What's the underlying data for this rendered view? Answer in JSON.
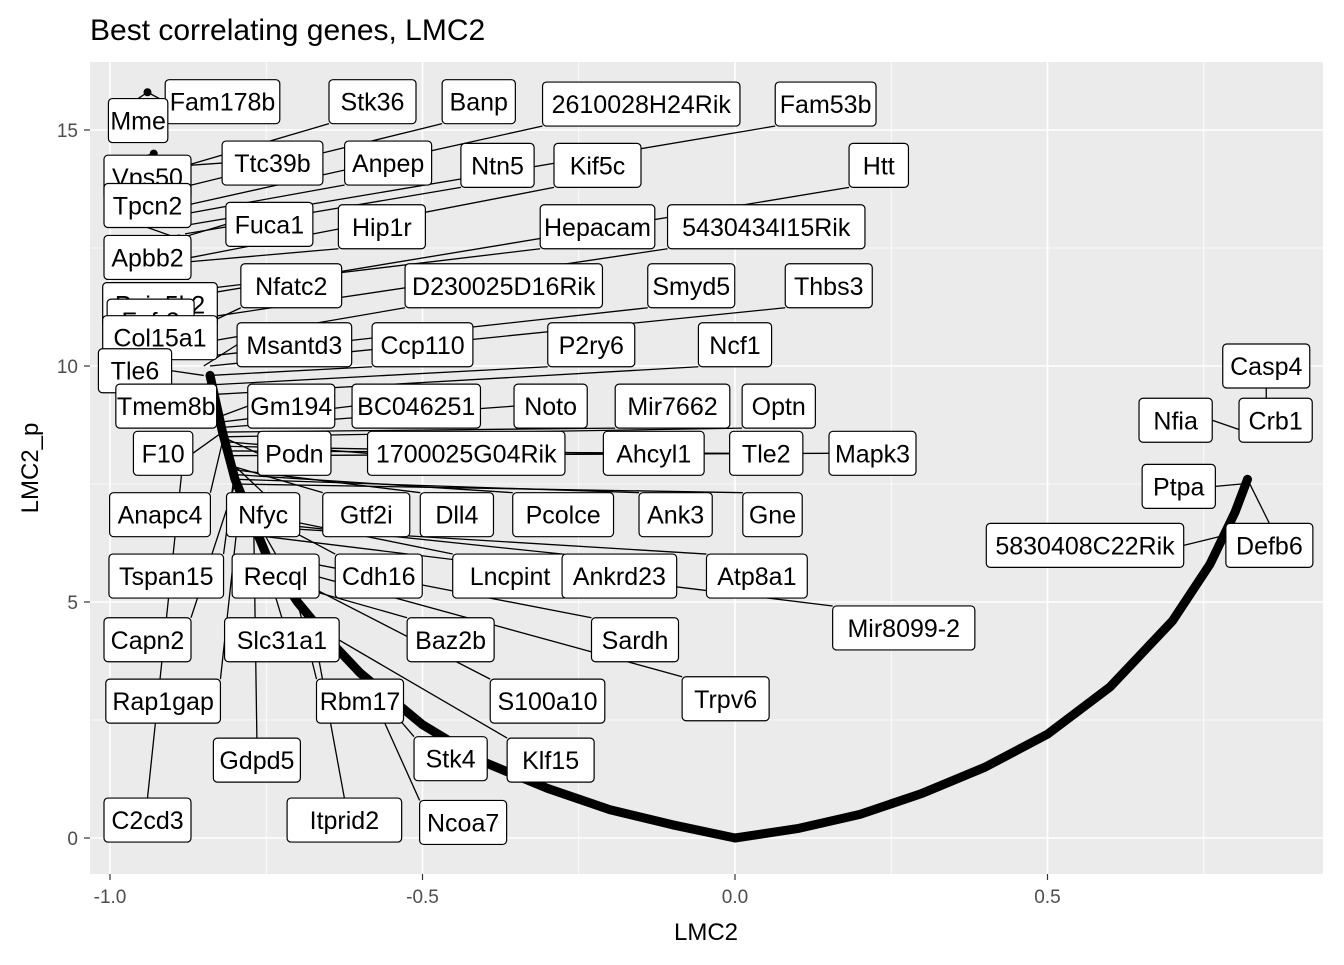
{
  "chart_data": {
    "type": "scatter",
    "title": "Best correlating genes, LMC2",
    "xlabel": "LMC2",
    "ylabel": "LMC2_p",
    "xlim": [
      -1.035,
      0.93
    ],
    "ylim": [
      -0.75,
      16.2
    ],
    "x_ticks": [
      -1.0,
      -0.5,
      0.0,
      0.5
    ],
    "x_tick_labels": [
      "-1.0",
      "-0.5",
      "0.0",
      "0.5"
    ],
    "y_ticks": [
      0,
      5,
      10,
      15
    ],
    "y_tick_labels": [
      "0",
      "5",
      "10",
      "15"
    ],
    "grid": true,
    "legend": "none",
    "curve": {
      "description_points": "dense gene points forming a V-shaped curve",
      "left_branch": [
        [
          -0.84,
          9.8
        ],
        [
          -0.82,
          8.6
        ],
        [
          -0.8,
          7.6
        ],
        [
          -0.75,
          6.0
        ],
        [
          -0.7,
          5.0
        ],
        [
          -0.65,
          4.2
        ],
        [
          -0.6,
          3.5
        ],
        [
          -0.5,
          2.4
        ],
        [
          -0.4,
          1.6
        ],
        [
          -0.3,
          1.05
        ],
        [
          -0.2,
          0.6
        ],
        [
          -0.1,
          0.28
        ],
        [
          0.0,
          0.0
        ]
      ],
      "right_branch": [
        [
          0.0,
          0.0
        ],
        [
          0.1,
          0.2
        ],
        [
          0.2,
          0.5
        ],
        [
          0.3,
          0.95
        ],
        [
          0.4,
          1.5
        ],
        [
          0.5,
          2.2
        ],
        [
          0.6,
          3.2
        ],
        [
          0.7,
          4.6
        ],
        [
          0.76,
          5.8
        ],
        [
          0.8,
          6.9
        ],
        [
          0.82,
          7.6
        ]
      ]
    },
    "highlight_points": [
      [
        -0.94,
        15.8
      ],
      [
        -0.93,
        14.5
      ],
      [
        -0.89,
        12.7
      ],
      [
        0.85,
        9.1
      ]
    ],
    "labels": [
      {
        "text": "Fam178b",
        "lx": -0.82,
        "ly": 15.6,
        "px": -0.94,
        "py": 15.8
      },
      {
        "text": "Stk36",
        "lx": -0.58,
        "ly": 15.6,
        "px": -0.89,
        "py": 14.2
      },
      {
        "text": "Banp",
        "lx": -0.41,
        "ly": 15.6,
        "px": -0.88,
        "py": 13.8
      },
      {
        "text": "2610028H24Rik",
        "lx": -0.15,
        "ly": 15.55,
        "px": -0.88,
        "py": 13.4
      },
      {
        "text": "Fam53b",
        "lx": 0.145,
        "ly": 15.55,
        "px": -0.87,
        "py": 13.0
      },
      {
        "text": "Mme",
        "lx": -0.955,
        "ly": 15.2,
        "px": -0.94,
        "py": 15.8
      },
      {
        "text": "Ttc39b",
        "lx": -0.74,
        "ly": 14.3,
        "px": -0.93,
        "py": 14.2
      },
      {
        "text": "Anpep",
        "lx": -0.555,
        "ly": 14.3,
        "px": -0.89,
        "py": 13.2
      },
      {
        "text": "Ntn5",
        "lx": -0.38,
        "ly": 14.25,
        "px": -0.88,
        "py": 12.8
      },
      {
        "text": "Kif5c",
        "lx": -0.22,
        "ly": 14.25,
        "px": -0.87,
        "py": 12.3
      },
      {
        "text": "Htt",
        "lx": 0.23,
        "ly": 14.25,
        "px": -0.86,
        "py": 11.5
      },
      {
        "text": "Vps50",
        "lx": -0.94,
        "ly": 14.0,
        "px": -0.93,
        "py": 14.5
      },
      {
        "text": "Tpcn2",
        "lx": -0.94,
        "ly": 13.4,
        "px": -0.89,
        "py": 12.7
      },
      {
        "text": "Fuca1",
        "lx": -0.745,
        "ly": 13.0,
        "px": -0.89,
        "py": 12.7
      },
      {
        "text": "Hip1r",
        "lx": -0.565,
        "ly": 12.95,
        "px": -0.88,
        "py": 12.2
      },
      {
        "text": "Hepacam",
        "lx": -0.22,
        "ly": 12.95,
        "px": -0.87,
        "py": 11.6
      },
      {
        "text": "5430434I15Rik",
        "lx": 0.05,
        "ly": 12.95,
        "px": -0.86,
        "py": 11.0
      },
      {
        "text": "Apbb2",
        "lx": -0.94,
        "ly": 12.3,
        "px": -0.89,
        "py": 12.4
      },
      {
        "text": "Nfatc2",
        "lx": -0.71,
        "ly": 11.7,
        "px": -0.86,
        "py": 10.8
      },
      {
        "text": "D230025D16Rik",
        "lx": -0.37,
        "ly": 11.7,
        "px": -0.85,
        "py": 10.5
      },
      {
        "text": "Smyd5",
        "lx": -0.07,
        "ly": 11.7,
        "px": -0.85,
        "py": 10.2
      },
      {
        "text": "Thbs3",
        "lx": 0.15,
        "ly": 11.7,
        "px": -0.84,
        "py": 10.0
      },
      {
        "text": "Ppip5k2",
        "lx": -0.92,
        "ly": 11.3,
        "px": -0.87,
        "py": 11.1
      },
      {
        "text": "Fgfr3",
        "lx": -0.935,
        "ly": 10.95,
        "px": -0.87,
        "py": 10.7
      },
      {
        "text": "Col15a1",
        "lx": -0.92,
        "ly": 10.6,
        "px": -0.86,
        "py": 10.2
      },
      {
        "text": "Msantd3",
        "lx": -0.705,
        "ly": 10.45,
        "px": -0.85,
        "py": 10.0
      },
      {
        "text": "Ccp110",
        "lx": -0.5,
        "ly": 10.45,
        "px": -0.84,
        "py": 9.8
      },
      {
        "text": "P2ry6",
        "lx": -0.23,
        "ly": 10.45,
        "px": -0.84,
        "py": 9.6
      },
      {
        "text": "Ncf1",
        "lx": 0.0,
        "ly": 10.45,
        "px": -0.83,
        "py": 9.4
      },
      {
        "text": "Tle6",
        "lx": -0.96,
        "ly": 9.9,
        "px": -0.85,
        "py": 9.8
      },
      {
        "text": "Tmem8b",
        "lx": -0.91,
        "ly": 9.15,
        "px": -0.83,
        "py": 9.0
      },
      {
        "text": "Gm194",
        "lx": -0.71,
        "ly": 9.15,
        "px": -0.83,
        "py": 8.9
      },
      {
        "text": "BC046251",
        "lx": -0.51,
        "ly": 9.15,
        "px": -0.83,
        "py": 8.8
      },
      {
        "text": "Noto",
        "lx": -0.295,
        "ly": 9.15,
        "px": -0.82,
        "py": 8.7
      },
      {
        "text": "Mir7662",
        "lx": -0.1,
        "ly": 9.15,
        "px": -0.82,
        "py": 8.6
      },
      {
        "text": "Optn",
        "lx": 0.07,
        "ly": 9.15,
        "px": -0.82,
        "py": 8.5
      },
      {
        "text": "Casp4",
        "lx": 0.85,
        "ly": 10.0,
        "px": 0.85,
        "py": 9.1
      },
      {
        "text": "Nfia",
        "lx": 0.705,
        "ly": 8.85,
        "px": 0.84,
        "py": 8.5
      },
      {
        "text": "Crb1",
        "lx": 0.865,
        "ly": 8.85,
        "px": 0.85,
        "py": 9.1
      },
      {
        "text": "F10",
        "lx": -0.915,
        "ly": 8.15,
        "px": -0.82,
        "py": 8.6
      },
      {
        "text": "Podn",
        "lx": -0.705,
        "ly": 8.15,
        "px": -0.82,
        "py": 8.5
      },
      {
        "text": "1700025G04Rik",
        "lx": -0.43,
        "ly": 8.15,
        "px": -0.82,
        "py": 8.4
      },
      {
        "text": "Ahcyl1",
        "lx": -0.13,
        "ly": 8.15,
        "px": -0.82,
        "py": 8.3
      },
      {
        "text": "Tle2",
        "lx": 0.05,
        "ly": 8.15,
        "px": -0.81,
        "py": 8.2
      },
      {
        "text": "Mapk3",
        "lx": 0.22,
        "ly": 8.15,
        "px": -0.81,
        "py": 8.1
      },
      {
        "text": "Ptpa",
        "lx": 0.71,
        "ly": 7.45,
        "px": 0.81,
        "py": 7.5
      },
      {
        "text": "Anapc4",
        "lx": -0.92,
        "ly": 6.85,
        "px": -0.82,
        "py": 8.4
      },
      {
        "text": "Nfyc",
        "lx": -0.755,
        "ly": 6.85,
        "px": -0.81,
        "py": 8.0
      },
      {
        "text": "Gtf2i",
        "lx": -0.59,
        "ly": 6.85,
        "px": -0.81,
        "py": 7.9
      },
      {
        "text": "Dll4",
        "lx": -0.445,
        "ly": 6.85,
        "px": -0.8,
        "py": 7.8
      },
      {
        "text": "Pcolce",
        "lx": -0.275,
        "ly": 6.85,
        "px": -0.8,
        "py": 7.7
      },
      {
        "text": "Ank3",
        "lx": -0.095,
        "ly": 6.85,
        "px": -0.8,
        "py": 7.6
      },
      {
        "text": "Gne",
        "lx": 0.06,
        "ly": 6.85,
        "px": -0.8,
        "py": 7.5
      },
      {
        "text": "5830408C22Rik",
        "lx": 0.56,
        "ly": 6.2,
        "px": 0.78,
        "py": 6.4
      },
      {
        "text": "Defb6",
        "lx": 0.855,
        "ly": 6.2,
        "px": 0.82,
        "py": 7.6
      },
      {
        "text": "Tspan15",
        "lx": -0.91,
        "ly": 5.55,
        "px": -0.8,
        "py": 7.8
      },
      {
        "text": "Recql",
        "lx": -0.735,
        "ly": 5.55,
        "px": -0.79,
        "py": 7.3
      },
      {
        "text": "Cdh16",
        "lx": -0.57,
        "ly": 5.55,
        "px": -0.78,
        "py": 7.0
      },
      {
        "text": "Lncpint",
        "lx": -0.36,
        "ly": 5.55,
        "px": -0.78,
        "py": 6.9
      },
      {
        "text": "Ankrd23",
        "lx": -0.185,
        "ly": 5.55,
        "px": -0.77,
        "py": 6.7
      },
      {
        "text": "Atp8a1",
        "lx": 0.035,
        "ly": 5.55,
        "px": -0.77,
        "py": 6.6
      },
      {
        "text": "Mir8099-2",
        "lx": 0.27,
        "ly": 4.45,
        "px": -0.76,
        "py": 6.4
      },
      {
        "text": "Capn2",
        "lx": -0.94,
        "ly": 4.2,
        "px": -0.8,
        "py": 7.5
      },
      {
        "text": "Slc31a1",
        "lx": -0.725,
        "ly": 4.2,
        "px": -0.76,
        "py": 6.2
      },
      {
        "text": "Baz2b",
        "lx": -0.455,
        "ly": 4.2,
        "px": -0.72,
        "py": 5.4
      },
      {
        "text": "Sardh",
        "lx": -0.16,
        "ly": 4.2,
        "px": -0.75,
        "py": 6.0
      },
      {
        "text": "Rap1gap",
        "lx": -0.915,
        "ly": 2.9,
        "px": -0.79,
        "py": 7.4
      },
      {
        "text": "Rbm17",
        "lx": -0.6,
        "ly": 2.9,
        "px": -0.7,
        "py": 5.0
      },
      {
        "text": "S100a10",
        "lx": -0.3,
        "ly": 2.9,
        "px": -0.72,
        "py": 5.6
      },
      {
        "text": "Trpv6",
        "lx": -0.015,
        "ly": 2.95,
        "px": -0.74,
        "py": 5.8
      },
      {
        "text": "Gdpd5",
        "lx": -0.765,
        "ly": 1.65,
        "px": -0.77,
        "py": 6.6
      },
      {
        "text": "Stk4",
        "lx": -0.455,
        "ly": 1.68,
        "px": -0.64,
        "py": 4.1
      },
      {
        "text": "Klf15",
        "lx": -0.295,
        "ly": 1.65,
        "px": -0.66,
        "py": 4.4
      },
      {
        "text": "C2cd3",
        "lx": -0.94,
        "ly": 0.38,
        "px": -0.88,
        "py": 8.4
      },
      {
        "text": "Itprid2",
        "lx": -0.625,
        "ly": 0.38,
        "px": -0.68,
        "py": 4.8
      },
      {
        "text": "Ncoa7",
        "lx": -0.435,
        "ly": 0.33,
        "px": -0.6,
        "py": 3.6
      }
    ]
  }
}
